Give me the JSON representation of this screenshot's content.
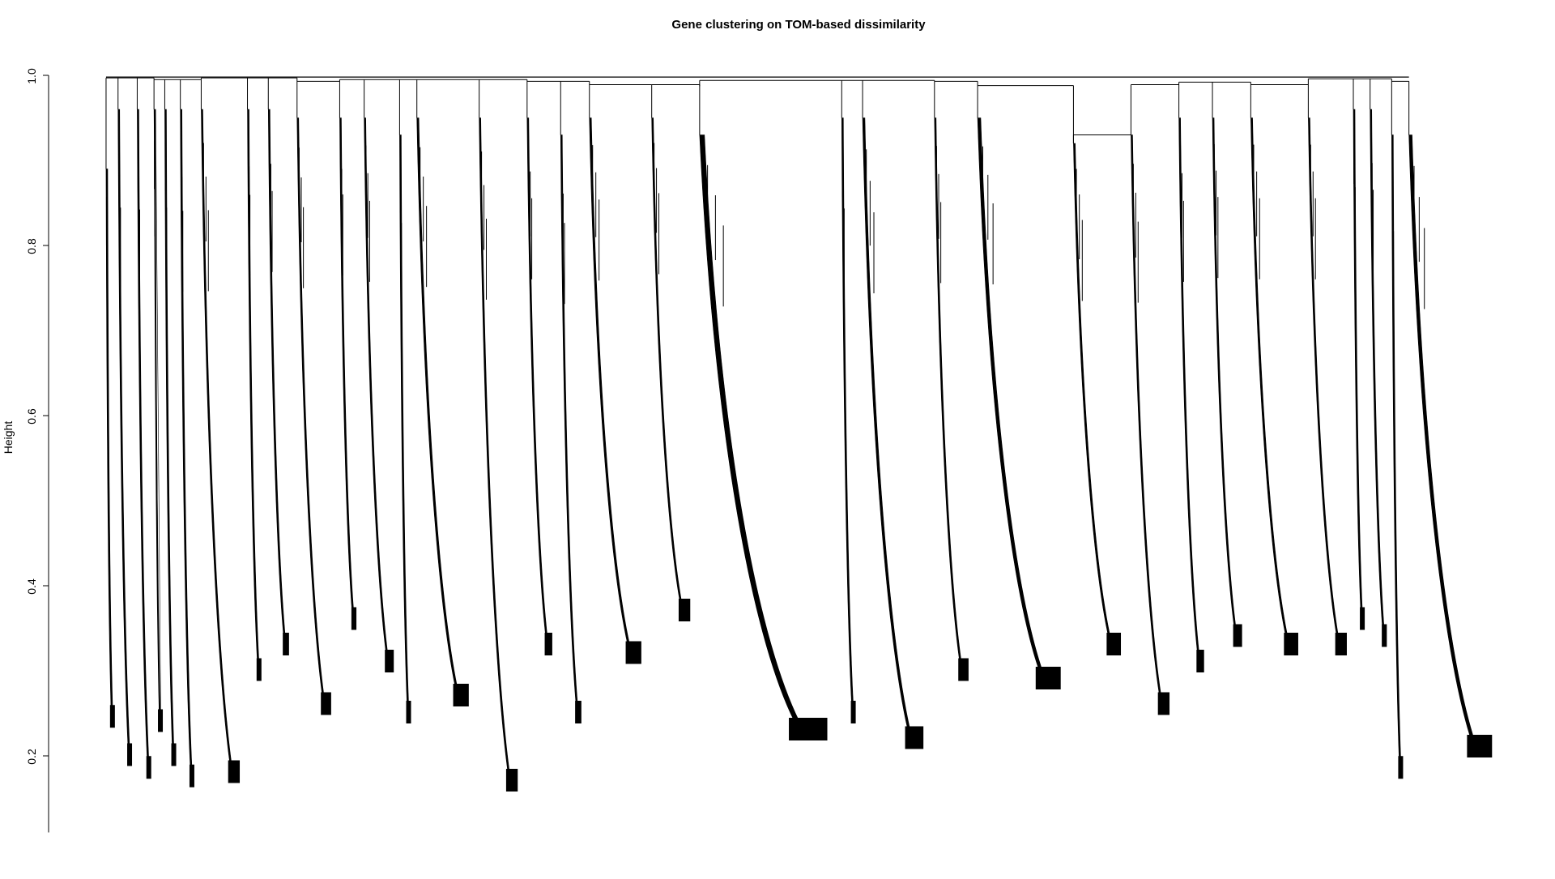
{
  "chart_data": {
    "type": "dendrogram",
    "title": "Gene clustering on TOM-based dissimilarity",
    "xlabel": "",
    "ylabel": "Height",
    "ylim": [
      0.11,
      1.0
    ],
    "yticks": [
      0.2,
      0.4,
      0.6,
      0.8,
      1.0
    ],
    "ytick_labels": [
      "0.2",
      "0.4",
      "0.6",
      "0.8",
      "1.0"
    ],
    "root_height": 0.998,
    "grid": false,
    "legend": "none",
    "line_color": "#000000",
    "clusters": [
      {
        "merge": 0.997,
        "start": 0.89,
        "floor": 0.235,
        "width": 0.002
      },
      {
        "merge": 0.997,
        "start": 0.96,
        "floor": 0.19,
        "width": 0.004
      },
      {
        "merge": 0.997,
        "start": 0.96,
        "floor": 0.175,
        "width": 0.004
      },
      {
        "merge": 0.995,
        "start": 0.96,
        "floor": 0.23,
        "width": 0.002
      },
      {
        "merge": 0.995,
        "start": 0.96,
        "floor": 0.19,
        "width": 0.003
      },
      {
        "merge": 0.995,
        "start": 0.96,
        "floor": 0.165,
        "width": 0.004
      },
      {
        "merge": 0.995,
        "start": 0.96,
        "floor": 0.17,
        "width": 0.01
      },
      {
        "merge": 0.997,
        "start": 0.96,
        "floor": 0.29,
        "width": 0.004
      },
      {
        "merge": 0.997,
        "start": 0.96,
        "floor": 0.32,
        "width": 0.006
      },
      {
        "merge": 0.993,
        "start": 0.95,
        "floor": 0.25,
        "width": 0.009
      },
      {
        "merge": 0.993,
        "start": 0.95,
        "floor": 0.35,
        "width": 0.005
      },
      {
        "merge": 0.995,
        "start": 0.95,
        "floor": 0.3,
        "width": 0.008
      },
      {
        "merge": 0.995,
        "start": 0.93,
        "floor": 0.24,
        "width": 0.003
      },
      {
        "merge": 0.995,
        "start": 0.95,
        "floor": 0.26,
        "width": 0.013
      },
      {
        "merge": 0.995,
        "start": 0.95,
        "floor": 0.16,
        "width": 0.01
      },
      {
        "merge": 0.993,
        "start": 0.95,
        "floor": 0.32,
        "width": 0.007
      },
      {
        "merge": 0.993,
        "start": 0.93,
        "floor": 0.24,
        "width": 0.006
      },
      {
        "merge": 0.989,
        "start": 0.95,
        "floor": 0.31,
        "width": 0.013
      },
      {
        "merge": 0.989,
        "start": 0.95,
        "floor": 0.36,
        "width": 0.01
      },
      {
        "merge": 0.987,
        "start": 0.93,
        "floor": 0.22,
        "width": 0.03
      },
      {
        "merge": 0.994,
        "start": 0.95,
        "floor": 0.24,
        "width": 0.004
      },
      {
        "merge": 0.994,
        "start": 0.95,
        "floor": 0.21,
        "width": 0.015
      },
      {
        "merge": 0.993,
        "start": 0.95,
        "floor": 0.29,
        "width": 0.009
      },
      {
        "merge": 0.988,
        "start": 0.95,
        "floor": 0.28,
        "width": 0.02
      },
      {
        "merge": 0.92,
        "start": 0.92,
        "floor": 0.32,
        "width": 0.012
      },
      {
        "merge": 0.93,
        "start": 0.93,
        "floor": 0.25,
        "width": 0.01
      },
      {
        "merge": 0.989,
        "start": 0.95,
        "floor": 0.3,
        "width": 0.007
      },
      {
        "merge": 0.992,
        "start": 0.95,
        "floor": 0.33,
        "width": 0.008
      },
      {
        "merge": 0.989,
        "start": 0.95,
        "floor": 0.32,
        "width": 0.012
      },
      {
        "merge": 0.989,
        "start": 0.95,
        "floor": 0.32,
        "width": 0.01
      },
      {
        "merge": 0.996,
        "start": 0.96,
        "floor": 0.35,
        "width": 0.003
      },
      {
        "merge": 0.996,
        "start": 0.96,
        "floor": 0.33,
        "width": 0.005
      },
      {
        "merge": 0.993,
        "start": 0.93,
        "floor": 0.175,
        "width": 0.003
      },
      {
        "merge": 0.993,
        "start": 0.93,
        "floor": 0.2,
        "width": 0.02
      }
    ]
  }
}
